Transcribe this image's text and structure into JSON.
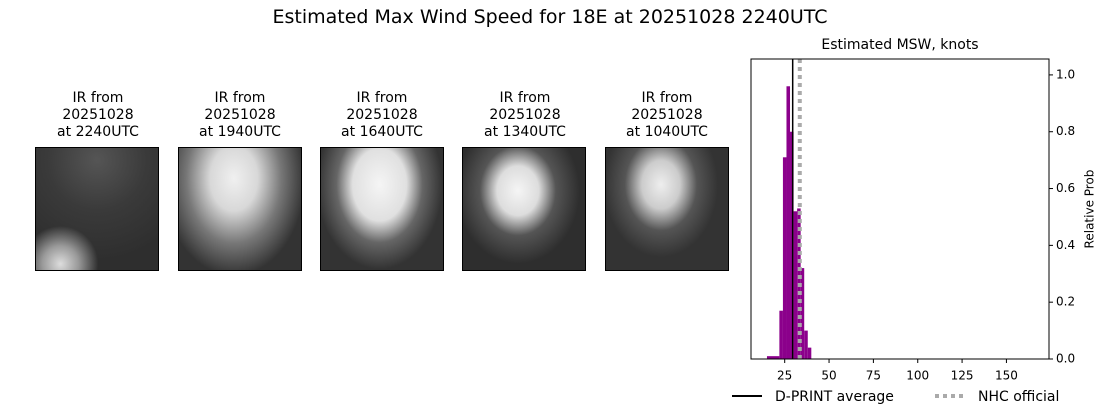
{
  "title": "Estimated Max Wind Speed for 18E at 20251028 2240UTC",
  "panels": [
    {
      "title": "IR from\n20251028\nat 2240UTC"
    },
    {
      "title": "IR from\n20251028\nat 1940UTC"
    },
    {
      "title": "IR from\n20251028\nat 1640UTC"
    },
    {
      "title": "IR from\n20251028\nat 1340UTC"
    },
    {
      "title": "IR from\n20251028\nat 1040UTC"
    }
  ],
  "chart_data": {
    "type": "histogram",
    "title": "Estimated MSW, knots",
    "y_label": "Relative Prob",
    "bins": [
      15,
      22,
      24,
      26,
      28,
      30,
      32,
      34,
      36,
      38,
      40
    ],
    "values": [
      0.01,
      0.17,
      0.71,
      0.96,
      0.8,
      0.52,
      0.53,
      0.32,
      0.1,
      0.04
    ],
    "color": "#8b008b",
    "lines": [
      {
        "name": "D-PRINT average",
        "value": 29.5,
        "color": "#000000",
        "style": "solid"
      },
      {
        "name": "NHC official",
        "value": 33.5,
        "color": "#aaaaaa",
        "style": "dotted"
      }
    ],
    "xlim": [
      6,
      174
    ],
    "xticks": [
      25,
      50,
      75,
      100,
      125,
      150
    ],
    "ylim": [
      0,
      1.056
    ],
    "yticks": [
      {
        "value": 0,
        "label": "0.0"
      },
      0.2,
      0.4,
      0.6,
      0.8,
      {
        "value": 1,
        "label": "1.0"
      }
    ],
    "y_axis_side": "right",
    "legend": "lower center"
  }
}
